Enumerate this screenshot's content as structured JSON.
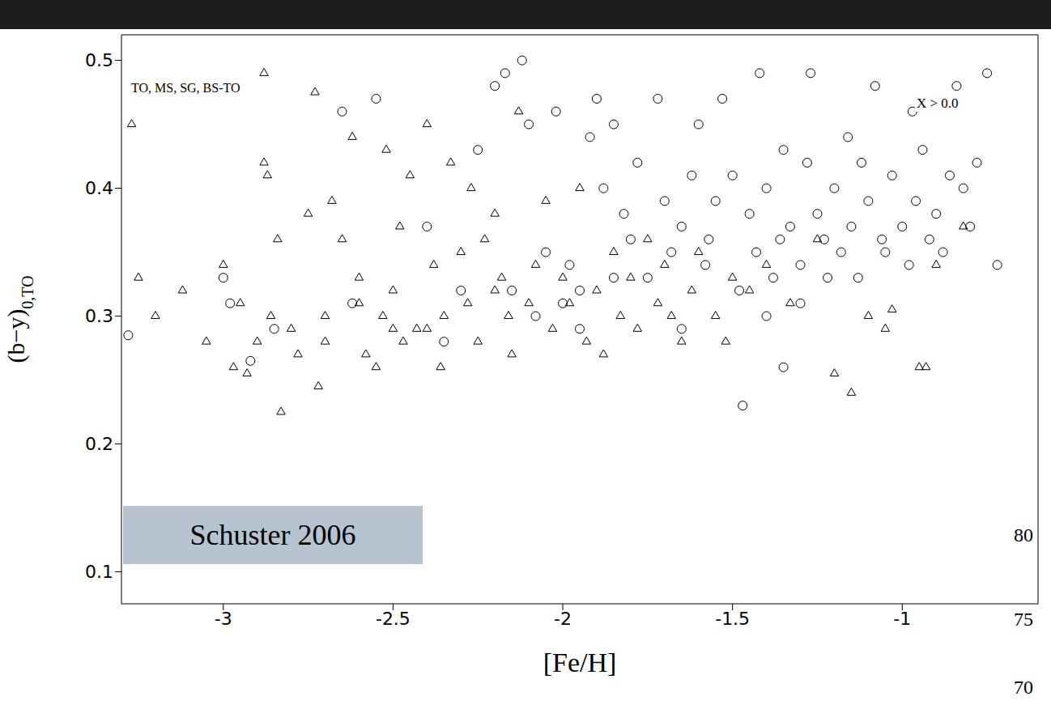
{
  "chart_data": {
    "type": "scatter",
    "x_label": "[Fe/H]",
    "y_label": "(b−y)",
    "y_label_sub": "0,TO",
    "xlim": [
      -3.3,
      -0.6
    ],
    "xticks": [
      -3,
      -2.5,
      -2,
      -1.5,
      -1
    ],
    "ylim": [
      0.075,
      0.52
    ],
    "yticks": [
      0.1,
      0.2,
      0.3,
      0.4,
      0.5
    ],
    "grid": false,
    "annotations": [
      "TO, MS, SG, BS-TO",
      "X > 0.0",
      "Schuster 2006",
      "80",
      "75",
      "70"
    ],
    "series": [
      {
        "marker": "triangle",
        "color": "#000000",
        "x": [
          -3.27,
          -3.25,
          -3.12,
          -3.05,
          -3.0,
          -2.95,
          -2.97,
          -2.93,
          -2.88,
          -2.87,
          -2.88,
          -2.86,
          -2.84,
          -2.83,
          -2.8,
          -2.78,
          -2.75,
          -2.73,
          -2.72,
          -2.7,
          -2.68,
          -2.65,
          -2.62,
          -2.6,
          -2.58,
          -2.55,
          -2.53,
          -2.52,
          -2.5,
          -2.48,
          -2.47,
          -2.45,
          -2.43,
          -2.4,
          -2.38,
          -2.36,
          -2.35,
          -2.33,
          -2.3,
          -2.28,
          -2.27,
          -2.25,
          -2.23,
          -2.2,
          -2.18,
          -2.16,
          -2.15,
          -2.13,
          -2.1,
          -2.08,
          -2.05,
          -2.03,
          -2.0,
          -1.98,
          -1.95,
          -1.93,
          -1.9,
          -1.88,
          -1.85,
          -1.83,
          -1.8,
          -1.78,
          -1.75,
          -1.72,
          -1.7,
          -1.68,
          -1.65,
          -1.62,
          -1.6,
          -1.55,
          -1.52,
          -1.5,
          -1.45,
          -1.4,
          -1.33,
          -1.25,
          -1.2,
          -1.15,
          -1.1,
          -1.05,
          -1.03,
          -0.95,
          -0.93,
          -0.9,
          -0.82,
          -3.2,
          -2.9,
          -2.6,
          -2.4,
          -2.2,
          -2.5,
          -2.7
        ],
        "y": [
          0.45,
          0.33,
          0.32,
          0.28,
          0.34,
          0.31,
          0.26,
          0.255,
          0.42,
          0.41,
          0.49,
          0.3,
          0.36,
          0.225,
          0.29,
          0.27,
          0.38,
          0.475,
          0.245,
          0.3,
          0.39,
          0.36,
          0.44,
          0.33,
          0.27,
          0.26,
          0.3,
          0.43,
          0.32,
          0.37,
          0.28,
          0.41,
          0.29,
          0.45,
          0.34,
          0.26,
          0.3,
          0.42,
          0.35,
          0.31,
          0.4,
          0.28,
          0.36,
          0.38,
          0.33,
          0.3,
          0.27,
          0.46,
          0.31,
          0.34,
          0.39,
          0.29,
          0.33,
          0.31,
          0.4,
          0.28,
          0.32,
          0.27,
          0.35,
          0.3,
          0.33,
          0.29,
          0.36,
          0.31,
          0.34,
          0.3,
          0.28,
          0.32,
          0.35,
          0.3,
          0.28,
          0.33,
          0.32,
          0.34,
          0.31,
          0.36,
          0.255,
          0.24,
          0.3,
          0.29,
          0.305,
          0.26,
          0.26,
          0.34,
          0.37,
          0.3,
          0.28,
          0.31,
          0.29,
          0.32,
          0.29,
          0.28
        ]
      },
      {
        "marker": "circle",
        "color": "#000000",
        "x": [
          -3.28,
          -3.0,
          -2.98,
          -2.92,
          -2.85,
          -2.65,
          -2.62,
          -2.55,
          -2.4,
          -2.35,
          -2.25,
          -2.2,
          -2.17,
          -2.12,
          -2.1,
          -2.08,
          -2.05,
          -2.02,
          -2.0,
          -1.98,
          -1.95,
          -1.92,
          -1.9,
          -1.88,
          -1.85,
          -1.82,
          -1.8,
          -1.78,
          -1.75,
          -1.72,
          -1.7,
          -1.68,
          -1.65,
          -1.62,
          -1.6,
          -1.58,
          -1.55,
          -1.53,
          -1.5,
          -1.48,
          -1.47,
          -1.45,
          -1.43,
          -1.42,
          -1.4,
          -1.38,
          -1.36,
          -1.35,
          -1.33,
          -1.3,
          -1.28,
          -1.27,
          -1.25,
          -1.23,
          -1.22,
          -1.2,
          -1.18,
          -1.16,
          -1.15,
          -1.13,
          -1.1,
          -1.08,
          -1.06,
          -1.05,
          -1.03,
          -1.0,
          -0.98,
          -0.96,
          -0.94,
          -0.92,
          -0.9,
          -0.88,
          -0.86,
          -0.84,
          -0.82,
          -0.8,
          -0.78,
          -0.75,
          -0.72,
          -1.57,
          -1.35,
          -1.4,
          -1.3,
          -1.65,
          -1.85,
          -1.95,
          -2.15,
          -2.3,
          -1.12,
          -0.97
        ],
        "y": [
          0.285,
          0.33,
          0.31,
          0.265,
          0.29,
          0.46,
          0.31,
          0.47,
          0.37,
          0.28,
          0.43,
          0.48,
          0.49,
          0.5,
          0.45,
          0.3,
          0.35,
          0.46,
          0.31,
          0.34,
          0.32,
          0.44,
          0.47,
          0.4,
          0.45,
          0.38,
          0.36,
          0.42,
          0.33,
          0.47,
          0.39,
          0.35,
          0.37,
          0.41,
          0.45,
          0.34,
          0.39,
          0.47,
          0.41,
          0.32,
          0.23,
          0.38,
          0.35,
          0.49,
          0.4,
          0.33,
          0.36,
          0.43,
          0.37,
          0.34,
          0.42,
          0.49,
          0.38,
          0.36,
          0.33,
          0.4,
          0.35,
          0.44,
          0.37,
          0.33,
          0.39,
          0.48,
          0.36,
          0.35,
          0.41,
          0.37,
          0.34,
          0.39,
          0.43,
          0.36,
          0.38,
          0.35,
          0.41,
          0.48,
          0.4,
          0.37,
          0.42,
          0.49,
          0.34,
          0.36,
          0.26,
          0.3,
          0.31,
          0.29,
          0.33,
          0.29,
          0.32,
          0.32,
          0.42,
          0.46
        ]
      }
    ]
  }
}
